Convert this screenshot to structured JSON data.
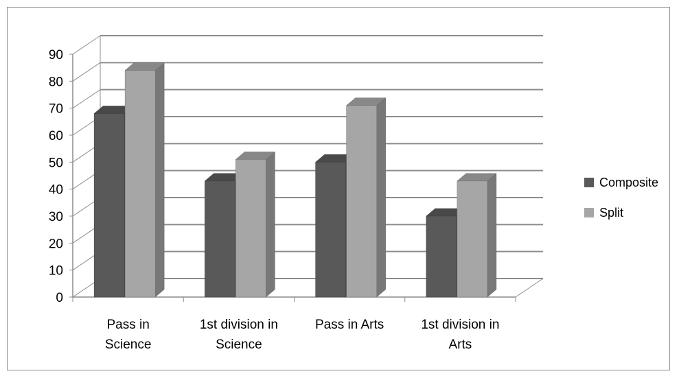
{
  "chart_data": {
    "type": "bar",
    "style": "3d-clustered-column",
    "title": "",
    "xlabel": "",
    "ylabel": "",
    "categories": [
      [
        "Pass in",
        "Science"
      ],
      [
        "1st division in",
        "Science"
      ],
      [
        "Pass in Arts"
      ],
      [
        "1st division in",
        "Arts"
      ]
    ],
    "series": [
      {
        "name": "Composite",
        "color": "#595959",
        "values": [
          68,
          43,
          50,
          30
        ]
      },
      {
        "name": "Split",
        "color": "#a6a6a6",
        "values": [
          84,
          51,
          71,
          43
        ]
      }
    ],
    "ylim": [
      0,
      90
    ],
    "yticks": [
      0,
      10,
      20,
      30,
      40,
      50,
      60,
      70,
      80,
      90
    ],
    "grid": true,
    "legend": "right"
  }
}
